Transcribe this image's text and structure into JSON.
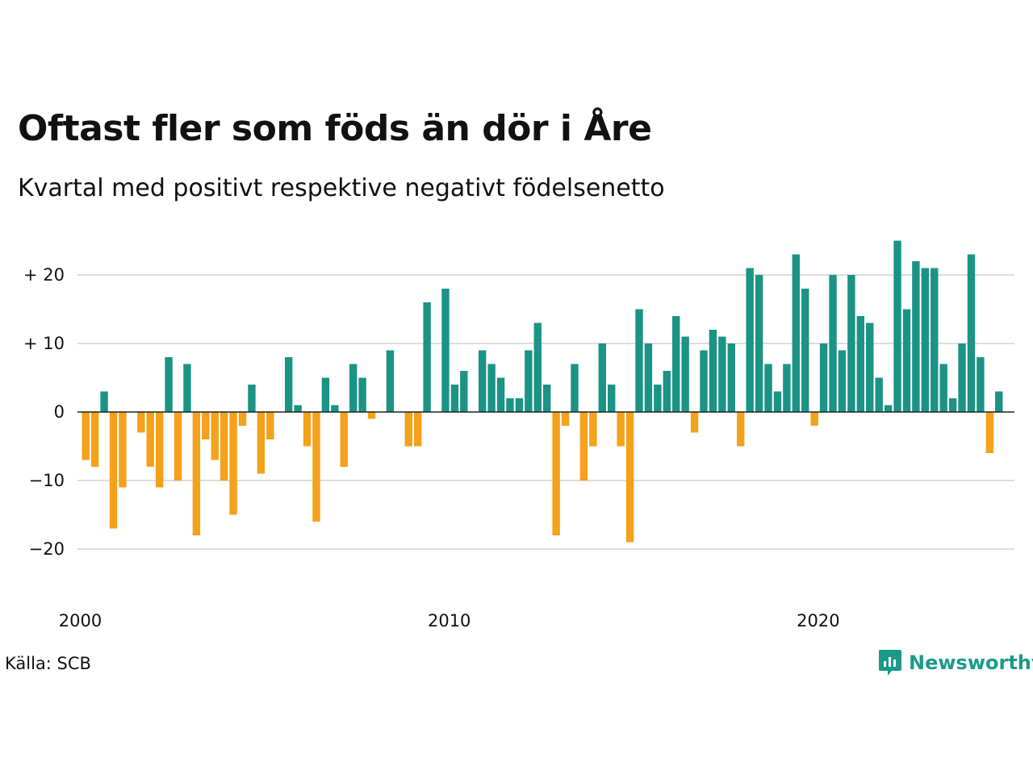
{
  "title": "Oftast fler som föds än dör i Åre",
  "subtitle": "Kvartal med positivt respektive negativt födelsenetto",
  "source": "Källa: SCB",
  "brand": "Newsworthy",
  "colors": {
    "positive": "#1b9385",
    "negative": "#f4a11b",
    "grid": "#dddddd",
    "zero": "#222222",
    "brand": "#1b9a8a"
  },
  "chart_data": {
    "type": "bar",
    "title": "Oftast fler som föds än dör i Åre",
    "subtitle": "Kvartal med positivt respektive negativt födelsenetto",
    "xlabel": "",
    "ylabel": "",
    "x_ticks": [
      "2000",
      "2010",
      "2020"
    ],
    "y_ticks": [
      {
        "value": 20,
        "label": "+ 20"
      },
      {
        "value": 10,
        "label": "+ 10"
      },
      {
        "value": 0,
        "label": "0"
      },
      {
        "value": -10,
        "label": "−10"
      },
      {
        "value": -20,
        "label": "−20"
      }
    ],
    "ylim": [
      -26,
      28
    ],
    "first_quarter": "2000 Q1",
    "grid": true,
    "values": [
      -7,
      -8,
      3,
      -17,
      -11,
      0,
      -3,
      -8,
      -11,
      8,
      -10,
      7,
      -18,
      -4,
      -7,
      -10,
      -15,
      -2,
      4,
      -9,
      -4,
      0,
      8,
      1,
      -5,
      -16,
      5,
      1,
      -8,
      7,
      5,
      -1,
      0,
      9,
      0,
      -5,
      -5,
      16,
      0,
      18,
      4,
      6,
      0,
      9,
      7,
      5,
      2,
      2,
      9,
      13,
      4,
      -18,
      -2,
      7,
      -10,
      -5,
      10,
      4,
      -5,
      -19,
      15,
      10,
      4,
      6,
      14,
      11,
      -3,
      9,
      12,
      11,
      10,
      -5,
      21,
      20,
      7,
      3,
      7,
      23,
      18,
      -2,
      10,
      20,
      9,
      20,
      14,
      13,
      5,
      1,
      25,
      15,
      22,
      21,
      21,
      7,
      2,
      10,
      23,
      8,
      -6,
      3
    ]
  }
}
